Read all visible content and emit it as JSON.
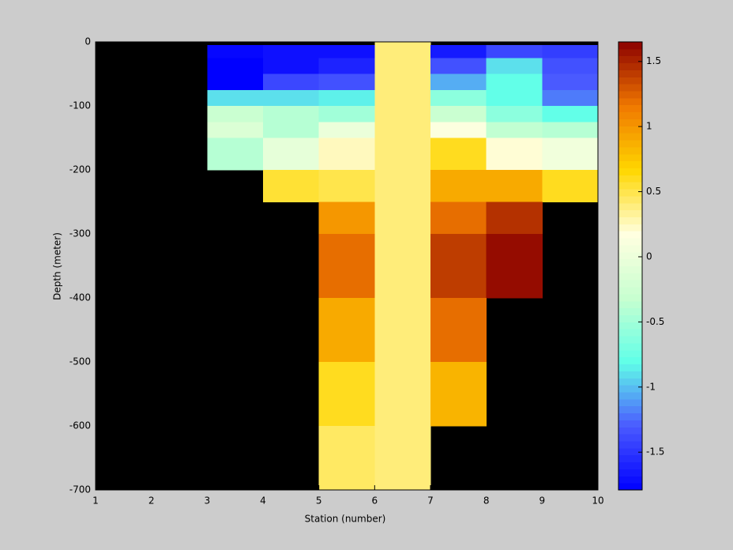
{
  "chart_data": {
    "type": "heatmap",
    "xlabel": "Station (number)",
    "ylabel": "Depth (meter)",
    "x_edges": [
      1,
      2,
      3,
      4,
      5,
      6,
      7,
      8,
      9,
      10
    ],
    "y_edges": [
      0,
      -5,
      -25,
      -50,
      -75,
      -100,
      -125,
      -150,
      -200,
      -250,
      -300,
      -400,
      -500,
      -600,
      -700
    ],
    "values": [
      [
        null,
        null,
        null,
        null,
        null,
        0.4,
        null,
        null,
        null
      ],
      [
        null,
        null,
        -1.75,
        -1.7,
        -1.7,
        0.4,
        -1.65,
        -1.4,
        -1.45
      ],
      [
        null,
        null,
        -1.8,
        -1.7,
        -1.6,
        0.4,
        -1.35,
        -0.9,
        -1.35
      ],
      [
        null,
        null,
        -1.8,
        -1.4,
        -1.35,
        0.4,
        -1.05,
        -0.8,
        -1.3
      ],
      [
        null,
        null,
        -0.9,
        -0.9,
        -0.85,
        0.4,
        -0.6,
        -0.8,
        -1.2
      ],
      [
        null,
        null,
        -0.3,
        -0.4,
        -0.5,
        0.4,
        -0.3,
        -0.6,
        -0.8
      ],
      [
        null,
        null,
        -0.15,
        -0.4,
        0.0,
        0.4,
        0.15,
        -0.35,
        -0.4
      ],
      [
        null,
        null,
        -0.4,
        -0.05,
        0.25,
        0.4,
        0.6,
        0.2,
        0.05
      ],
      [
        null,
        null,
        null,
        0.55,
        0.5,
        0.4,
        0.9,
        0.9,
        0.6
      ],
      [
        null,
        null,
        null,
        null,
        1.0,
        0.4,
        1.2,
        1.45,
        null
      ],
      [
        null,
        null,
        null,
        null,
        1.2,
        0.4,
        1.4,
        1.6,
        null
      ],
      [
        null,
        null,
        null,
        null,
        0.9,
        0.4,
        1.2,
        null,
        null
      ],
      [
        null,
        null,
        null,
        null,
        0.6,
        0.4,
        0.85,
        null,
        null
      ],
      [
        null,
        null,
        null,
        null,
        0.45,
        0.4,
        null,
        null,
        null
      ]
    ],
    "xlim": [
      1,
      10
    ],
    "ylim": [
      -700,
      0
    ],
    "xticks": [
      1,
      2,
      3,
      4,
      5,
      6,
      7,
      8,
      9,
      10
    ],
    "yticks": [
      0,
      -100,
      -200,
      -300,
      -400,
      -500,
      -600,
      -700
    ],
    "clim": [
      -1.79,
      1.65
    ],
    "cticks": [
      -1.5,
      -1,
      -0.5,
      0,
      0.5,
      1,
      1.5
    ],
    "colorscale": [
      "#0000ff",
      "#4a5aff",
      "#60ffe8",
      "#c8ffd0",
      "#ffffe0",
      "#ffd700",
      "#f07800",
      "#8b0000"
    ],
    "nan_color": "#000000"
  }
}
